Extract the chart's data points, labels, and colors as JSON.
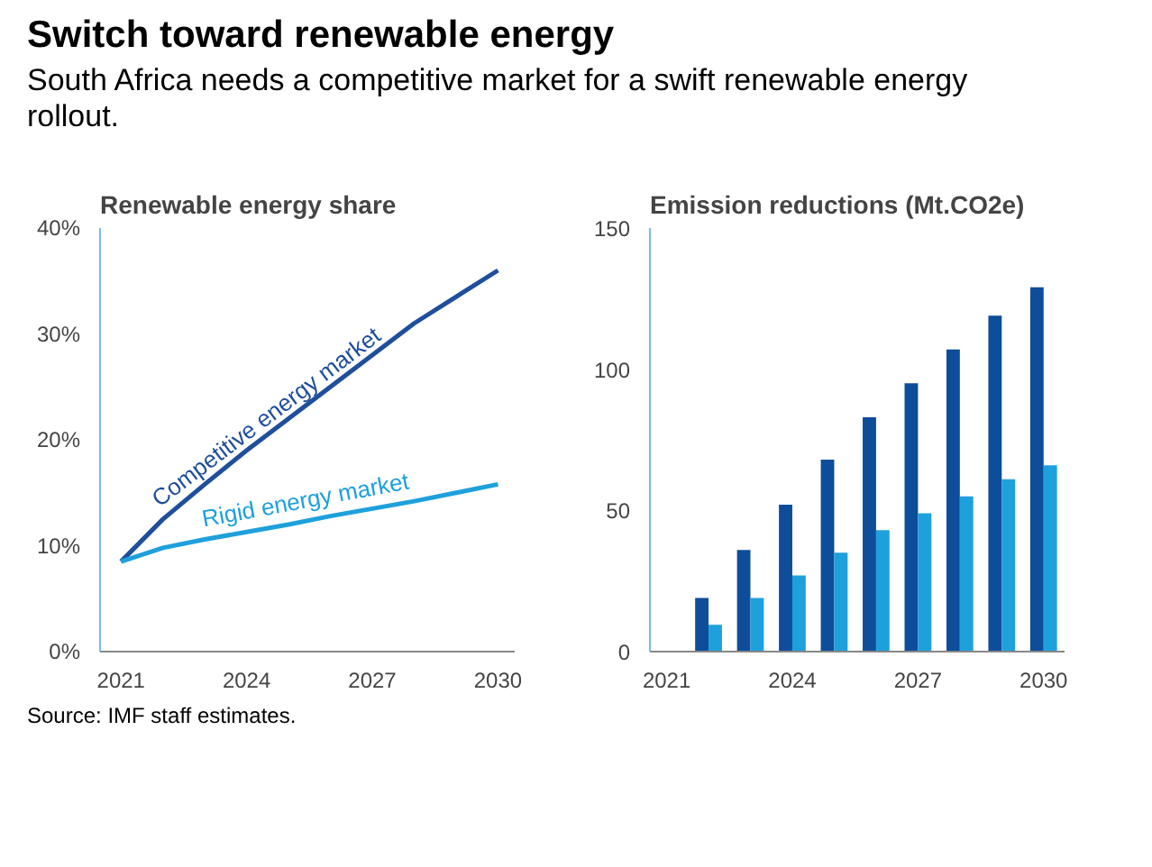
{
  "chart_data": [
    {
      "type": "other",
      "title": "Switch toward renewable energy",
      "subtitle": "South Africa needs a competitive market for a swift renewable energy rollout.",
      "annotations": [
        "Source: IMF staff estimates."
      ]
    },
    {
      "type": "line",
      "title": "Renewable energy share",
      "x": [
        2021,
        2022,
        2023,
        2024,
        2025,
        2026,
        2027,
        2028,
        2029,
        2030
      ],
      "series": [
        {
          "name": "Competitive energy market",
          "color": "#1f4e9c",
          "values": [
            8.5,
            12.5,
            15.8,
            19,
            22,
            25,
            28,
            31,
            33.5,
            36
          ]
        },
        {
          "name": "Rigid energy market",
          "color": "#1ea0dc",
          "values": [
            8.5,
            9.8,
            10.6,
            11.3,
            12,
            12.8,
            13.5,
            14.2,
            15,
            15.8
          ]
        }
      ],
      "xlim": [
        2020.5,
        2030.4
      ],
      "xticks": [
        2021,
        2024,
        2027,
        2030
      ],
      "ylim": [
        0,
        40
      ],
      "yticks": [
        {
          "value": 0,
          "label": "0%"
        },
        {
          "value": 10,
          "label": "10%"
        },
        {
          "value": 20,
          "label": "20%"
        },
        {
          "value": 30,
          "label": "30%"
        },
        {
          "value": 40,
          "label": "40%"
        }
      ],
      "grid": false,
      "line_style": "solid",
      "marker": "none"
    },
    {
      "type": "bar",
      "title": "Emission reductions (Mt.CO2e)",
      "x": [
        2022,
        2023,
        2024,
        2025,
        2026,
        2027,
        2028,
        2029,
        2030
      ],
      "series": [
        {
          "color": "#0d4d9a",
          "values": [
            19,
            36,
            52,
            68,
            83,
            95,
            107,
            119,
            129
          ]
        },
        {
          "color": "#1ea0dc",
          "values": [
            9.5,
            19,
            27,
            35,
            43,
            49,
            55,
            61,
            66
          ]
        }
      ],
      "xlim": [
        2020.6,
        2030.5
      ],
      "xticks": [
        2021,
        2024,
        2027,
        2030
      ],
      "ylim": [
        0,
        150
      ],
      "yticks": [
        0,
        50,
        100,
        150
      ],
      "grid": false
    }
  ]
}
